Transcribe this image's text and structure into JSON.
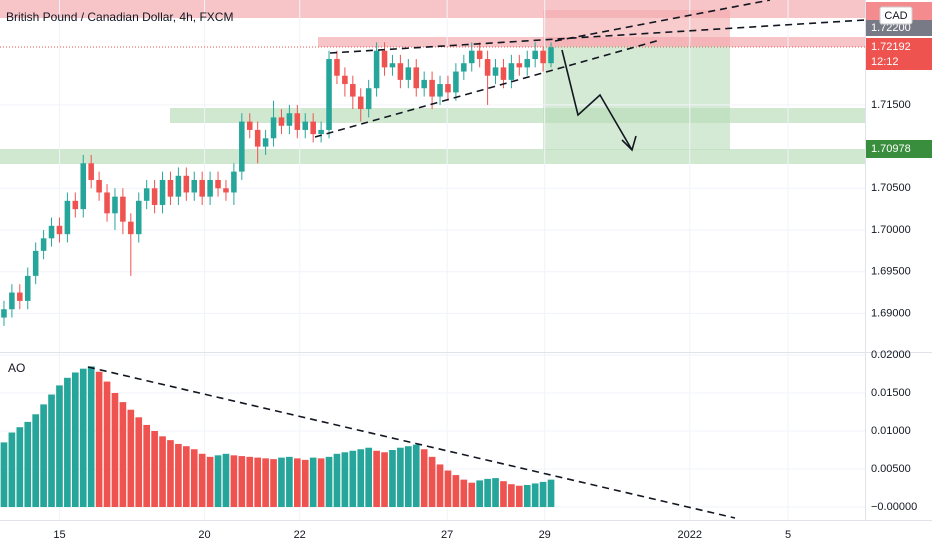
{
  "chart_data": [
    {
      "type": "candlestick",
      "title": "British Pound / Canadian Dollar, 4h, FXCM",
      "up_color": "#26a69a",
      "down_color": "#ef5350",
      "open": [
        1.6895,
        1.6905,
        1.6925,
        1.6915,
        1.6945,
        1.6975,
        1.699,
        1.7005,
        1.6995,
        1.7035,
        1.7025,
        1.708,
        1.706,
        1.7045,
        1.702,
        1.704,
        1.701,
        1.6995,
        1.7035,
        1.705,
        1.703,
        1.706,
        1.704,
        1.7065,
        1.7045,
        1.706,
        1.704,
        1.706,
        1.705,
        1.7045,
        1.707,
        1.713,
        1.712,
        1.71,
        1.711,
        1.7135,
        1.7125,
        1.714,
        1.712,
        1.713,
        1.7115,
        1.712,
        1.7205,
        1.7185,
        1.7175,
        1.716,
        1.7145,
        1.717,
        1.7215,
        1.7195,
        1.72,
        1.718,
        1.7195,
        1.717,
        1.718,
        1.716,
        1.7175,
        1.7165,
        1.719,
        1.72,
        1.7215,
        1.7205,
        1.7185,
        1.7195,
        1.718,
        1.72,
        1.7195,
        1.7205,
        1.7215,
        1.72
      ],
      "high": [
        1.6915,
        1.6935,
        1.6935,
        1.6955,
        1.6985,
        1.7,
        1.7015,
        1.7015,
        1.7045,
        1.7045,
        1.709,
        1.709,
        1.707,
        1.7055,
        1.705,
        1.705,
        1.702,
        1.7045,
        1.706,
        1.706,
        1.707,
        1.707,
        1.7075,
        1.7075,
        1.707,
        1.707,
        1.707,
        1.707,
        1.706,
        1.708,
        1.714,
        1.714,
        1.713,
        1.712,
        1.7155,
        1.7145,
        1.715,
        1.715,
        1.714,
        1.714,
        1.713,
        1.7215,
        1.7215,
        1.7195,
        1.7185,
        1.717,
        1.718,
        1.7225,
        1.7225,
        1.721,
        1.721,
        1.7205,
        1.7205,
        1.719,
        1.719,
        1.7185,
        1.7185,
        1.72,
        1.721,
        1.7225,
        1.7225,
        1.7215,
        1.7205,
        1.7205,
        1.721,
        1.721,
        1.7215,
        1.7225,
        1.722,
        1.7225
      ],
      "low": [
        1.6885,
        1.6895,
        1.6905,
        1.6905,
        1.6935,
        1.6965,
        1.698,
        1.6985,
        1.6985,
        1.7015,
        1.7015,
        1.705,
        1.7035,
        1.701,
        1.7,
        1.6995,
        1.6945,
        1.6985,
        1.7025,
        1.702,
        1.702,
        1.703,
        1.703,
        1.7035,
        1.7035,
        1.703,
        1.703,
        1.704,
        1.7035,
        1.703,
        1.706,
        1.711,
        1.708,
        1.709,
        1.71,
        1.7115,
        1.7115,
        1.711,
        1.711,
        1.7105,
        1.7105,
        1.711,
        1.7175,
        1.716,
        1.7145,
        1.713,
        1.7135,
        1.716,
        1.7185,
        1.7185,
        1.717,
        1.717,
        1.716,
        1.716,
        1.7145,
        1.715,
        1.7155,
        1.7155,
        1.718,
        1.719,
        1.7195,
        1.715,
        1.7175,
        1.717,
        1.717,
        1.7185,
        1.7185,
        1.7195,
        1.719,
        1.7195
      ],
      "close": [
        1.6905,
        1.6925,
        1.6915,
        1.6945,
        1.6975,
        1.699,
        1.7005,
        1.6995,
        1.7035,
        1.7025,
        1.708,
        1.706,
        1.7045,
        1.702,
        1.704,
        1.701,
        1.6995,
        1.7035,
        1.705,
        1.703,
        1.706,
        1.704,
        1.7065,
        1.7045,
        1.706,
        1.704,
        1.706,
        1.705,
        1.7045,
        1.707,
        1.713,
        1.712,
        1.71,
        1.711,
        1.7135,
        1.7125,
        1.714,
        1.712,
        1.713,
        1.7115,
        1.712,
        1.7205,
        1.7185,
        1.7175,
        1.716,
        1.7145,
        1.717,
        1.7215,
        1.7195,
        1.72,
        1.718,
        1.7195,
        1.717,
        1.718,
        1.716,
        1.7175,
        1.7165,
        1.719,
        1.72,
        1.7215,
        1.7205,
        1.7185,
        1.7195,
        1.718,
        1.72,
        1.7195,
        1.7205,
        1.7215,
        1.72,
        1.72192
      ],
      "xlim": [
        -0.5,
        108.6
      ],
      "xticks": [
        {
          "value": 7,
          "label": "15"
        },
        {
          "value": 25.3,
          "label": "20"
        },
        {
          "value": 37.3,
          "label": "22"
        },
        {
          "value": 55.9,
          "label": "27"
        },
        {
          "value": 68.2,
          "label": "29"
        },
        {
          "value": 86.5,
          "label": "2022"
        },
        {
          "value": 98.9,
          "label": "5"
        }
      ],
      "ylim": [
        1.68537,
        1.72758
      ],
      "yticks": [
        {
          "value": 1.69,
          "label": "1.69000"
        },
        {
          "value": 1.695,
          "label": "1.69500"
        },
        {
          "value": 1.7,
          "label": "1.70000"
        },
        {
          "value": 1.705,
          "label": "1.70500"
        },
        {
          "value": 1.715,
          "label": "1.71500"
        }
      ],
      "grid": true,
      "currency": "CAD",
      "level_label_top": "1.72200",
      "last_price_label": "1.72192",
      "countdown": "12:12",
      "level_label_bottom": "1.70978"
    },
    {
      "type": "bar",
      "title": "AO",
      "up_color": "#26a69a",
      "down_color": "#ef5350",
      "values": [
        0.0085,
        0.0098,
        0.0105,
        0.0112,
        0.0122,
        0.0135,
        0.0148,
        0.016,
        0.017,
        0.0177,
        0.0182,
        0.0185,
        0.0178,
        0.0165,
        0.015,
        0.0138,
        0.0128,
        0.0118,
        0.0108,
        0.01,
        0.0093,
        0.0088,
        0.0083,
        0.008,
        0.0076,
        0.007,
        0.0066,
        0.0068,
        0.007,
        0.0068,
        0.0067,
        0.0066,
        0.0065,
        0.0064,
        0.0063,
        0.0065,
        0.0066,
        0.0064,
        0.0062,
        0.0065,
        0.0064,
        0.0066,
        0.007,
        0.0072,
        0.0074,
        0.0076,
        0.0078,
        0.0074,
        0.0072,
        0.0075,
        0.0078,
        0.008,
        0.0082,
        0.0076,
        0.0066,
        0.0056,
        0.0048,
        0.0042,
        0.0036,
        0.0032,
        0.0035,
        0.0037,
        0.0038,
        0.0034,
        0.003,
        0.0028,
        0.0029,
        0.0031,
        0.0033,
        0.0036
      ],
      "ylim": [
        -0.00171,
        0.020395
      ],
      "yticks": [
        {
          "value": 0.02,
          "label": "0.02000"
        },
        {
          "value": 0.015,
          "label": "0.01500"
        },
        {
          "value": 0.01,
          "label": "0.01000"
        },
        {
          "value": 0.005,
          "label": "0.00500"
        },
        {
          "value": 0,
          "label": "−0.00000"
        }
      ],
      "grid": true
    }
  ]
}
